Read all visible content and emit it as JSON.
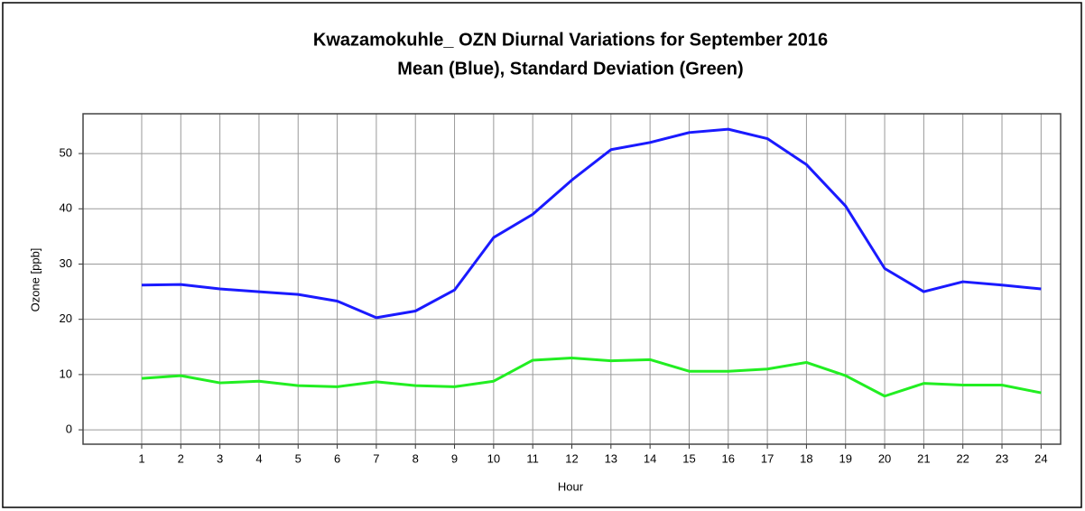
{
  "chart_data": {
    "type": "line",
    "title": "Kwazamokuhle_ OZN Diurnal Variations for September 2016",
    "subtitle": "Mean (Blue), Standard Deviation (Green)",
    "x_label": "Hour",
    "y_label": "Ozone [ppb]",
    "x": [
      1,
      2,
      3,
      4,
      5,
      6,
      7,
      8,
      9,
      10,
      11,
      12,
      13,
      14,
      15,
      16,
      17,
      18,
      19,
      20,
      21,
      22,
      23,
      24
    ],
    "series": [
      {
        "color": "#1a1aff",
        "values": [
          26.2,
          26.3,
          25.5,
          25,
          24.5,
          23.3,
          20.3,
          21.5,
          25.3,
          34.8,
          39,
          45.2,
          50.7,
          52,
          53.8,
          54.4,
          52.7,
          48,
          40.5,
          29.2,
          25,
          26.8,
          26.2,
          25.5
        ]
      },
      {
        "color": "#22ee22",
        "values": [
          9.3,
          9.8,
          8.5,
          8.8,
          8,
          7.8,
          8.7,
          8,
          7.8,
          8.8,
          12.6,
          13,
          12.5,
          12.7,
          10.6,
          10.6,
          11,
          12.2,
          9.8,
          6.1,
          8.4,
          8.1,
          8.1,
          6.7
        ]
      }
    ],
    "xlim": [
      -0.5,
      24.5
    ],
    "xticks": [
      1,
      2,
      3,
      4,
      5,
      6,
      7,
      8,
      9,
      10,
      11,
      12,
      13,
      14,
      15,
      16,
      17,
      18,
      19,
      20,
      21,
      22,
      23,
      24
    ],
    "ylim": [
      -2.6,
      57.2
    ],
    "yticks": [
      0,
      10,
      20,
      30,
      40,
      50
    ],
    "grid": true
  }
}
